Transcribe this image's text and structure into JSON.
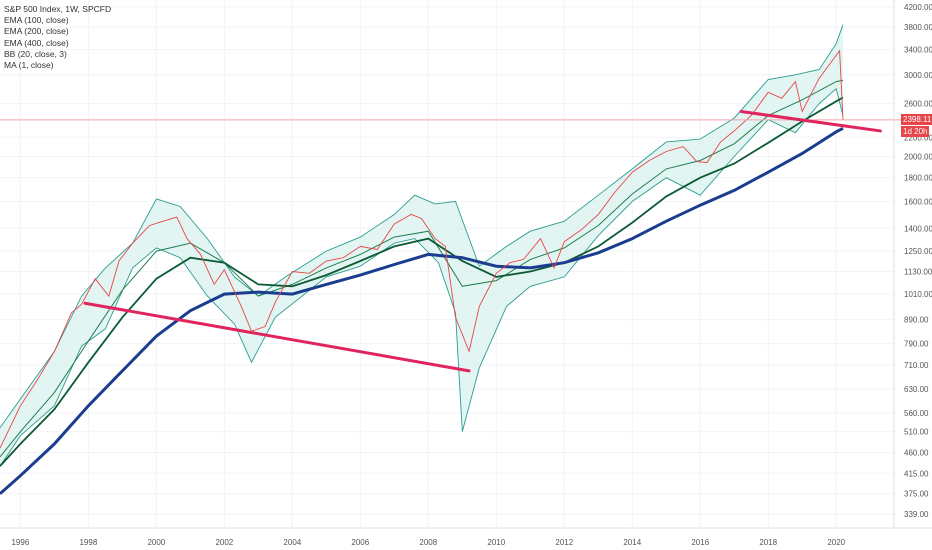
{
  "header": {
    "title": "S&P 500 Index, 1W, SPCFD",
    "indicators": [
      "EMA (100, close)",
      "EMA (200, close)",
      "EMA (400, close)",
      "BB (20, close, 3)",
      "MA (1, close)"
    ]
  },
  "price_tag": {
    "value": "2398.11",
    "countdown": "1d 20h"
  },
  "colors": {
    "price_line": "#e8454a",
    "bb_band": "#2a9d8f",
    "bb_fill": "#d9f2ee",
    "ema100": "#1e7f4d",
    "ema200": "#0b5a35",
    "ema400": "#1a3d8f",
    "trendline": "#e0245e",
    "hline": "#f2a0a8",
    "tag_bg": "#e8454a"
  },
  "chart_data": {
    "type": "line",
    "title": "S&P 500 Index, 1W, SPCFD",
    "xlabel": "",
    "ylabel": "",
    "y_scale": "log",
    "xlim": [
      1995.4,
      2021.7
    ],
    "ylim": [
      339,
      4200
    ],
    "x_ticks": [
      "1996",
      "1998",
      "2000",
      "2002",
      "2004",
      "2006",
      "2008",
      "2010",
      "2012",
      "2014",
      "2016",
      "2018",
      "2020"
    ],
    "y_ticks": [
      "4200.00",
      "3800.00",
      "3400.00",
      "3000.00",
      "2600.00",
      "2200.00",
      "2000.00",
      "1800.00",
      "1600.00",
      "1400.00",
      "1250.00",
      "1130.00",
      "1010.00",
      "890.00",
      "790.00",
      "710.00",
      "630.00",
      "560.00",
      "510.00",
      "460.00",
      "415.00",
      "375.00",
      "339.00"
    ],
    "series": [
      {
        "name": "MA (1, close)",
        "x": [
          1995.4,
          1996.0,
          1996.5,
          1997.0,
          1997.5,
          1997.8,
          1998.2,
          1998.6,
          1998.9,
          1999.3,
          1999.8,
          2000.2,
          2000.6,
          2000.9,
          2001.3,
          2001.7,
          2002.0,
          2002.5,
          2002.8,
          2003.2,
          2003.5,
          2004.0,
          2004.5,
          2005.0,
          2005.5,
          2006.0,
          2006.5,
          2007.0,
          2007.5,
          2007.8,
          2008.2,
          2008.5,
          2008.8,
          2009.2,
          2009.5,
          2010.0,
          2010.4,
          2010.8,
          2011.3,
          2011.7,
          2012.0,
          2012.5,
          2013.0,
          2013.5,
          2014.0,
          2014.5,
          2015.0,
          2015.5,
          2015.9,
          2016.2,
          2016.6,
          2017.0,
          2017.5,
          2018.0,
          2018.4,
          2018.8,
          2019.0,
          2019.5,
          2019.9,
          2020.1,
          2020.2
        ],
        "y": [
          470,
          580,
          660,
          760,
          920,
          960,
          1090,
          1000,
          1190,
          1300,
          1420,
          1450,
          1480,
          1330,
          1230,
          1060,
          1140,
          950,
          840,
          860,
          970,
          1130,
          1120,
          1190,
          1210,
          1280,
          1260,
          1430,
          1500,
          1470,
          1330,
          1280,
          900,
          760,
          950,
          1120,
          1180,
          1200,
          1330,
          1150,
          1310,
          1390,
          1500,
          1680,
          1850,
          1960,
          2050,
          2100,
          1950,
          1940,
          2150,
          2270,
          2450,
          2750,
          2670,
          2900,
          2500,
          2950,
          3230,
          3380,
          2398.11
        ]
      },
      {
        "name": "EMA (100, close)",
        "x": [
          1995.4,
          1996.0,
          1997.0,
          1998.0,
          1999.0,
          2000.0,
          2001.0,
          2002.0,
          2003.0,
          2004.0,
          2005.0,
          2006.0,
          2007.0,
          2008.0,
          2009.0,
          2010.0,
          2011.0,
          2012.0,
          2013.0,
          2014.0,
          2015.0,
          2016.0,
          2017.0,
          2018.0,
          2019.0,
          2020.0,
          2020.2
        ],
        "y": [
          450,
          510,
          620,
          800,
          1030,
          1250,
          1300,
          1180,
          1000,
          1060,
          1150,
          1230,
          1340,
          1380,
          1050,
          1080,
          1200,
          1270,
          1420,
          1660,
          1880,
          1960,
          2130,
          2450,
          2650,
          2900,
          2920
        ]
      },
      {
        "name": "EMA (200, close)",
        "x": [
          1995.4,
          1996.0,
          1997.0,
          1998.0,
          1999.0,
          2000.0,
          2001.0,
          2002.0,
          2003.0,
          2004.0,
          2005.0,
          2006.0,
          2007.0,
          2008.0,
          2009.0,
          2010.0,
          2011.0,
          2012.0,
          2013.0,
          2014.0,
          2015.0,
          2016.0,
          2017.0,
          2018.0,
          2019.0,
          2020.0,
          2020.2
        ],
        "y": [
          430,
          480,
          570,
          720,
          900,
          1090,
          1210,
          1180,
          1060,
          1050,
          1110,
          1190,
          1280,
          1330,
          1190,
          1100,
          1130,
          1180,
          1280,
          1440,
          1640,
          1800,
          1930,
          2140,
          2380,
          2630,
          2680
        ]
      },
      {
        "name": "EMA (400, close)",
        "x": [
          1995.4,
          1996.0,
          1997.0,
          1998.0,
          1999.0,
          2000.0,
          2001.0,
          2002.0,
          2003.0,
          2004.0,
          2005.0,
          2006.0,
          2007.0,
          2008.0,
          2009.0,
          2010.0,
          2011.0,
          2012.0,
          2013.0,
          2014.0,
          2015.0,
          2016.0,
          2017.0,
          2018.0,
          2019.0,
          2020.0,
          2020.2
        ],
        "y": [
          375,
          410,
          480,
          580,
          690,
          820,
          930,
          1010,
          1020,
          1010,
          1060,
          1110,
          1170,
          1230,
          1210,
          1160,
          1150,
          1180,
          1240,
          1330,
          1450,
          1570,
          1690,
          1850,
          2030,
          2260,
          2300
        ]
      },
      {
        "name": "BB upper",
        "x": [
          1995.4,
          1996.0,
          1997.0,
          1997.8,
          1998.5,
          1999.3,
          2000.0,
          2000.7,
          2001.5,
          2002.3,
          2003.0,
          2003.8,
          2005.0,
          2006.0,
          2007.0,
          2007.6,
          2008.2,
          2008.8,
          2009.5,
          2010.3,
          2011.0,
          2012.0,
          2013.0,
          2014.0,
          2015.0,
          2016.0,
          2017.0,
          2018.0,
          2018.8,
          2019.5,
          2020.0,
          2020.2
        ],
        "y": [
          520,
          600,
          760,
          1000,
          1150,
          1300,
          1620,
          1560,
          1330,
          1100,
          1000,
          1100,
          1250,
          1340,
          1500,
          1650,
          1580,
          1600,
          1160,
          1280,
          1380,
          1450,
          1650,
          1880,
          2150,
          2180,
          2420,
          2930,
          3000,
          3080,
          3500,
          3850
        ]
      },
      {
        "name": "BB lower",
        "x": [
          1995.4,
          1996.0,
          1997.0,
          1997.8,
          1998.5,
          1999.3,
          2000.0,
          2000.7,
          2001.5,
          2002.3,
          2002.8,
          2003.5,
          2005.0,
          2006.0,
          2007.0,
          2007.6,
          2008.3,
          2008.8,
          2009.0,
          2009.5,
          2010.3,
          2011.0,
          2012.0,
          2013.0,
          2014.0,
          2015.0,
          2016.0,
          2017.0,
          2018.0,
          2018.8,
          2019.5,
          2020.0,
          2020.2
        ],
        "y": [
          430,
          500,
          580,
          780,
          850,
          1150,
          1270,
          1210,
          1000,
          870,
          720,
          900,
          1100,
          1160,
          1300,
          1330,
          1180,
          920,
          510,
          700,
          950,
          1050,
          1100,
          1350,
          1600,
          1800,
          1650,
          2000,
          2400,
          2250,
          2600,
          2800,
          2450
        ]
      },
      {
        "name": "Trendline 1",
        "x": [
          1997.9,
          2009.2
        ],
        "y": [
          965,
          690
        ]
      },
      {
        "name": "Trendline 2",
        "x": [
          2017.2,
          2021.3
        ],
        "y": [
          2500,
          2270
        ]
      },
      {
        "name": "Horizontal line",
        "x": [
          1995.4,
          2021.7
        ],
        "y": [
          2398.11,
          2398.11
        ]
      }
    ]
  }
}
